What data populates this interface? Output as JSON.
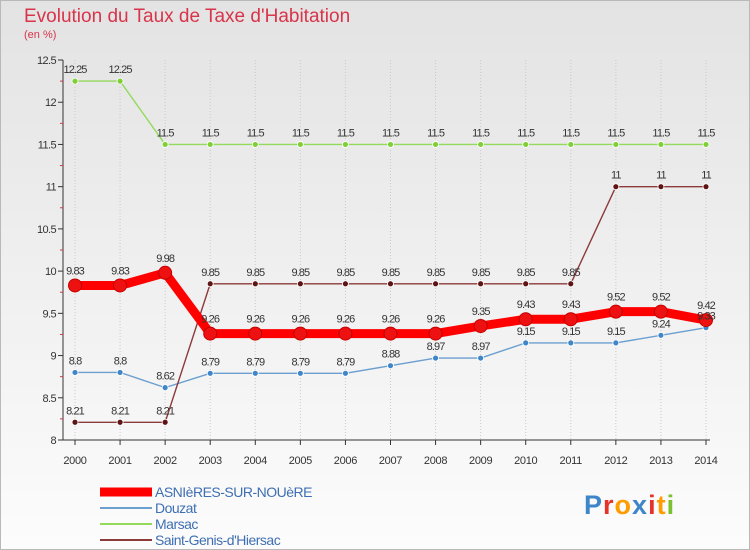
{
  "chart_data": {
    "type": "line",
    "title": "Evolution du Taux de Taxe d'Habitation",
    "subtitle": "(en %)",
    "xlabel": "",
    "ylabel": "",
    "ylim": [
      8,
      12.5
    ],
    "y_ticks": [
      "8",
      "8.5",
      "9",
      "9.5",
      "10",
      "10.5",
      "11",
      "11.5",
      "12",
      "12.5"
    ],
    "categories": [
      "2000",
      "2001",
      "2002",
      "2003",
      "2004",
      "2005",
      "2006",
      "2007",
      "2008",
      "2009",
      "2010",
      "2011",
      "2012",
      "2013",
      "2014"
    ],
    "legend_position": "bottom-left",
    "series": [
      {
        "name": "ASNIèRES-SUR-NOUèRE",
        "color": "#ff0000",
        "marker": "#ee1111",
        "highlight": true,
        "values": [
          9.83,
          9.83,
          9.98,
          9.26,
          9.26,
          9.26,
          9.26,
          9.26,
          9.26,
          9.35,
          9.43,
          9.43,
          9.52,
          9.52,
          9.42
        ],
        "labels": [
          "9.83",
          "9.83",
          "9.98",
          "9.26",
          "9.26",
          "9.26",
          "9.26",
          "9.26",
          "9.26",
          "9.35",
          "9.43",
          "9.43",
          "9.52",
          "9.52",
          "9.42"
        ]
      },
      {
        "name": "Douzat",
        "color": "#6b9fd0",
        "marker": "#3f86c9",
        "highlight": false,
        "values": [
          8.8,
          8.8,
          8.62,
          8.79,
          8.79,
          8.79,
          8.79,
          8.88,
          8.97,
          8.97,
          9.15,
          9.15,
          9.15,
          9.24,
          9.33
        ],
        "labels": [
          "8.8",
          "8.8",
          "8.62",
          "8.79",
          "8.79",
          "8.79",
          "8.79",
          "8.88",
          "8.97",
          "8.97",
          "9.15",
          "9.15",
          "9.15",
          "9.24",
          "9.33"
        ]
      },
      {
        "name": "Marsac",
        "color": "#93d95a",
        "marker": "#7fcf35",
        "highlight": false,
        "values": [
          12.25,
          12.25,
          11.5,
          11.5,
          11.5,
          11.5,
          11.5,
          11.5,
          11.5,
          11.5,
          11.5,
          11.5,
          11.5,
          11.5,
          11.5
        ],
        "labels": [
          "12.25",
          "12.25",
          "11.5",
          "11.5",
          "11.5",
          "11.5",
          "11.5",
          "11.5",
          "11.5",
          "11.5",
          "11.5",
          "11.5",
          "11.5",
          "11.5",
          "11.5"
        ]
      },
      {
        "name": "Saint-Genis-d'Hiersac",
        "color": "#8c3a3a",
        "marker": "#5e1414",
        "highlight": false,
        "values": [
          8.21,
          8.21,
          8.21,
          9.85,
          9.85,
          9.85,
          9.85,
          9.85,
          9.85,
          9.85,
          9.85,
          9.85,
          11,
          11,
          11
        ],
        "labels": [
          "8.21",
          "8.21",
          "8.21",
          "9.85",
          "9.85",
          "9.85",
          "9.85",
          "9.85",
          "9.85",
          "9.85",
          "9.85",
          "9.85",
          "11",
          "11",
          "11"
        ]
      }
    ]
  },
  "logo": {
    "letters": [
      "P",
      "r",
      "o",
      "x",
      "i",
      "t",
      "i"
    ],
    "colors": [
      "#3f86c9",
      "#e5332a",
      "#ff9c00",
      "#3f86c9",
      "#e5332a",
      "#ff9c00",
      "#7cbf2f"
    ]
  },
  "colors": {
    "title": "#d8344a",
    "axis": "#333333",
    "grid": "#c9c9c9"
  }
}
